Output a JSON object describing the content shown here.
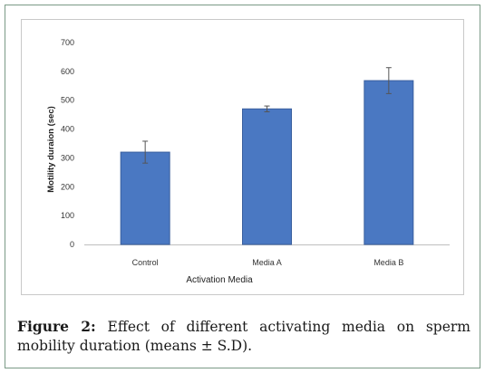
{
  "chart_data": {
    "type": "bar",
    "categories": [
      "Control",
      "Media A",
      "Media B"
    ],
    "values": [
      320,
      470,
      568
    ],
    "errors": [
      38,
      10,
      45
    ],
    "ylim": [
      0,
      700
    ],
    "yticks": [
      0,
      100,
      200,
      300,
      400,
      500,
      600,
      700
    ],
    "ytick_labels": [
      "0",
      "100",
      "200",
      "300",
      "400",
      "500",
      "600",
      "700"
    ],
    "xlabel": "Activation Media",
    "ylabel": "Motility duraion (sec)",
    "grid": false,
    "bar_color": "#4a78c2",
    "bar_edge_color": "#3a5f9e"
  },
  "caption": {
    "label": "Figure 2:",
    "text": "Effect of different activating media on sperm mobility duration (means ± S.D)."
  }
}
